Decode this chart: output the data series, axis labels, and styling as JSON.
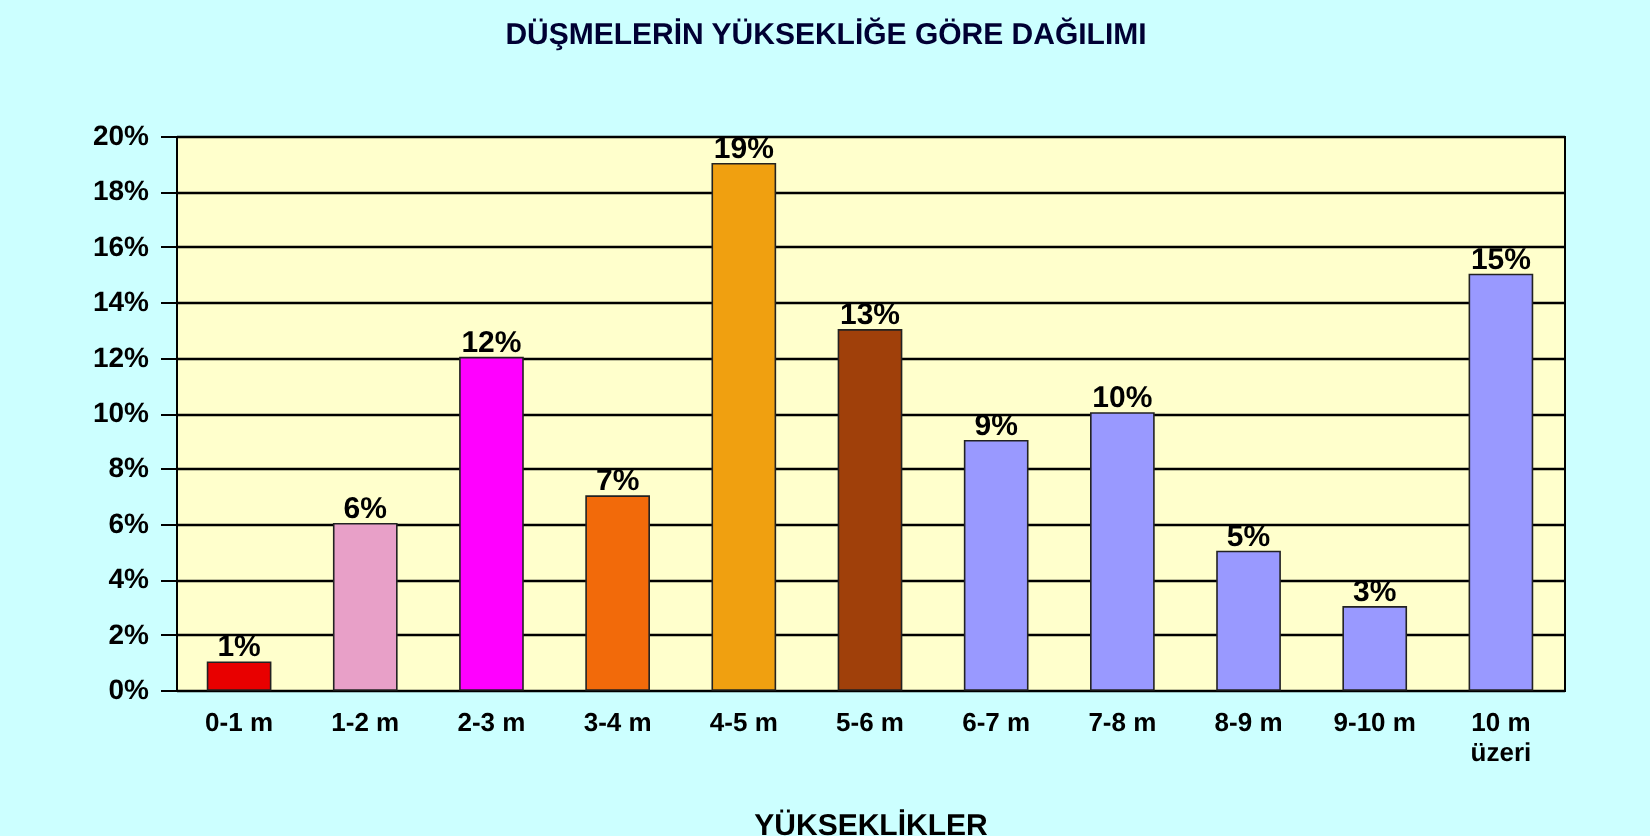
{
  "chart_data": {
    "type": "bar",
    "title": "DÜŞMELERİN YÜKSEKLİĞE GÖRE DAĞILIMI",
    "xlabel": "YÜKSEKLİKLER",
    "categories": [
      "0-1 m",
      "1-2 m",
      "2-3 m",
      "3-4 m",
      "4-5 m",
      "5-6 m",
      "6-7 m",
      "7-8 m",
      "8-9 m",
      "9-10 m",
      "10 m\nüzeri"
    ],
    "values": [
      1,
      6,
      12,
      7,
      19,
      13,
      9,
      10,
      5,
      3,
      15
    ],
    "value_labels": [
      "1%",
      "6%",
      "12%",
      "7%",
      "19%",
      "13%",
      "9%",
      "10%",
      "5%",
      "3%",
      "15%"
    ],
    "colors": [
      "#e80000",
      "#e8a0c8",
      "#ff00ff",
      "#f26a0a",
      "#f0a010",
      "#a0400a",
      "#9999ff",
      "#9999ff",
      "#9999ff",
      "#9999ff",
      "#9999ff"
    ],
    "ylim": [
      0,
      20
    ],
    "yticks": [
      {
        "value": 0,
        "label": "0%"
      },
      {
        "value": 2,
        "label": "2%"
      },
      {
        "value": 4,
        "label": "4%"
      },
      {
        "value": 6,
        "label": "6%"
      },
      {
        "value": 8,
        "label": "8%"
      },
      {
        "value": 10,
        "label": "10%"
      },
      {
        "value": 12,
        "label": "12%"
      },
      {
        "value": 14,
        "label": "14%"
      },
      {
        "value": 16,
        "label": "16%"
      },
      {
        "value": 18,
        "label": "18%"
      },
      {
        "value": 20,
        "label": "20%"
      }
    ],
    "grid": "y"
  }
}
